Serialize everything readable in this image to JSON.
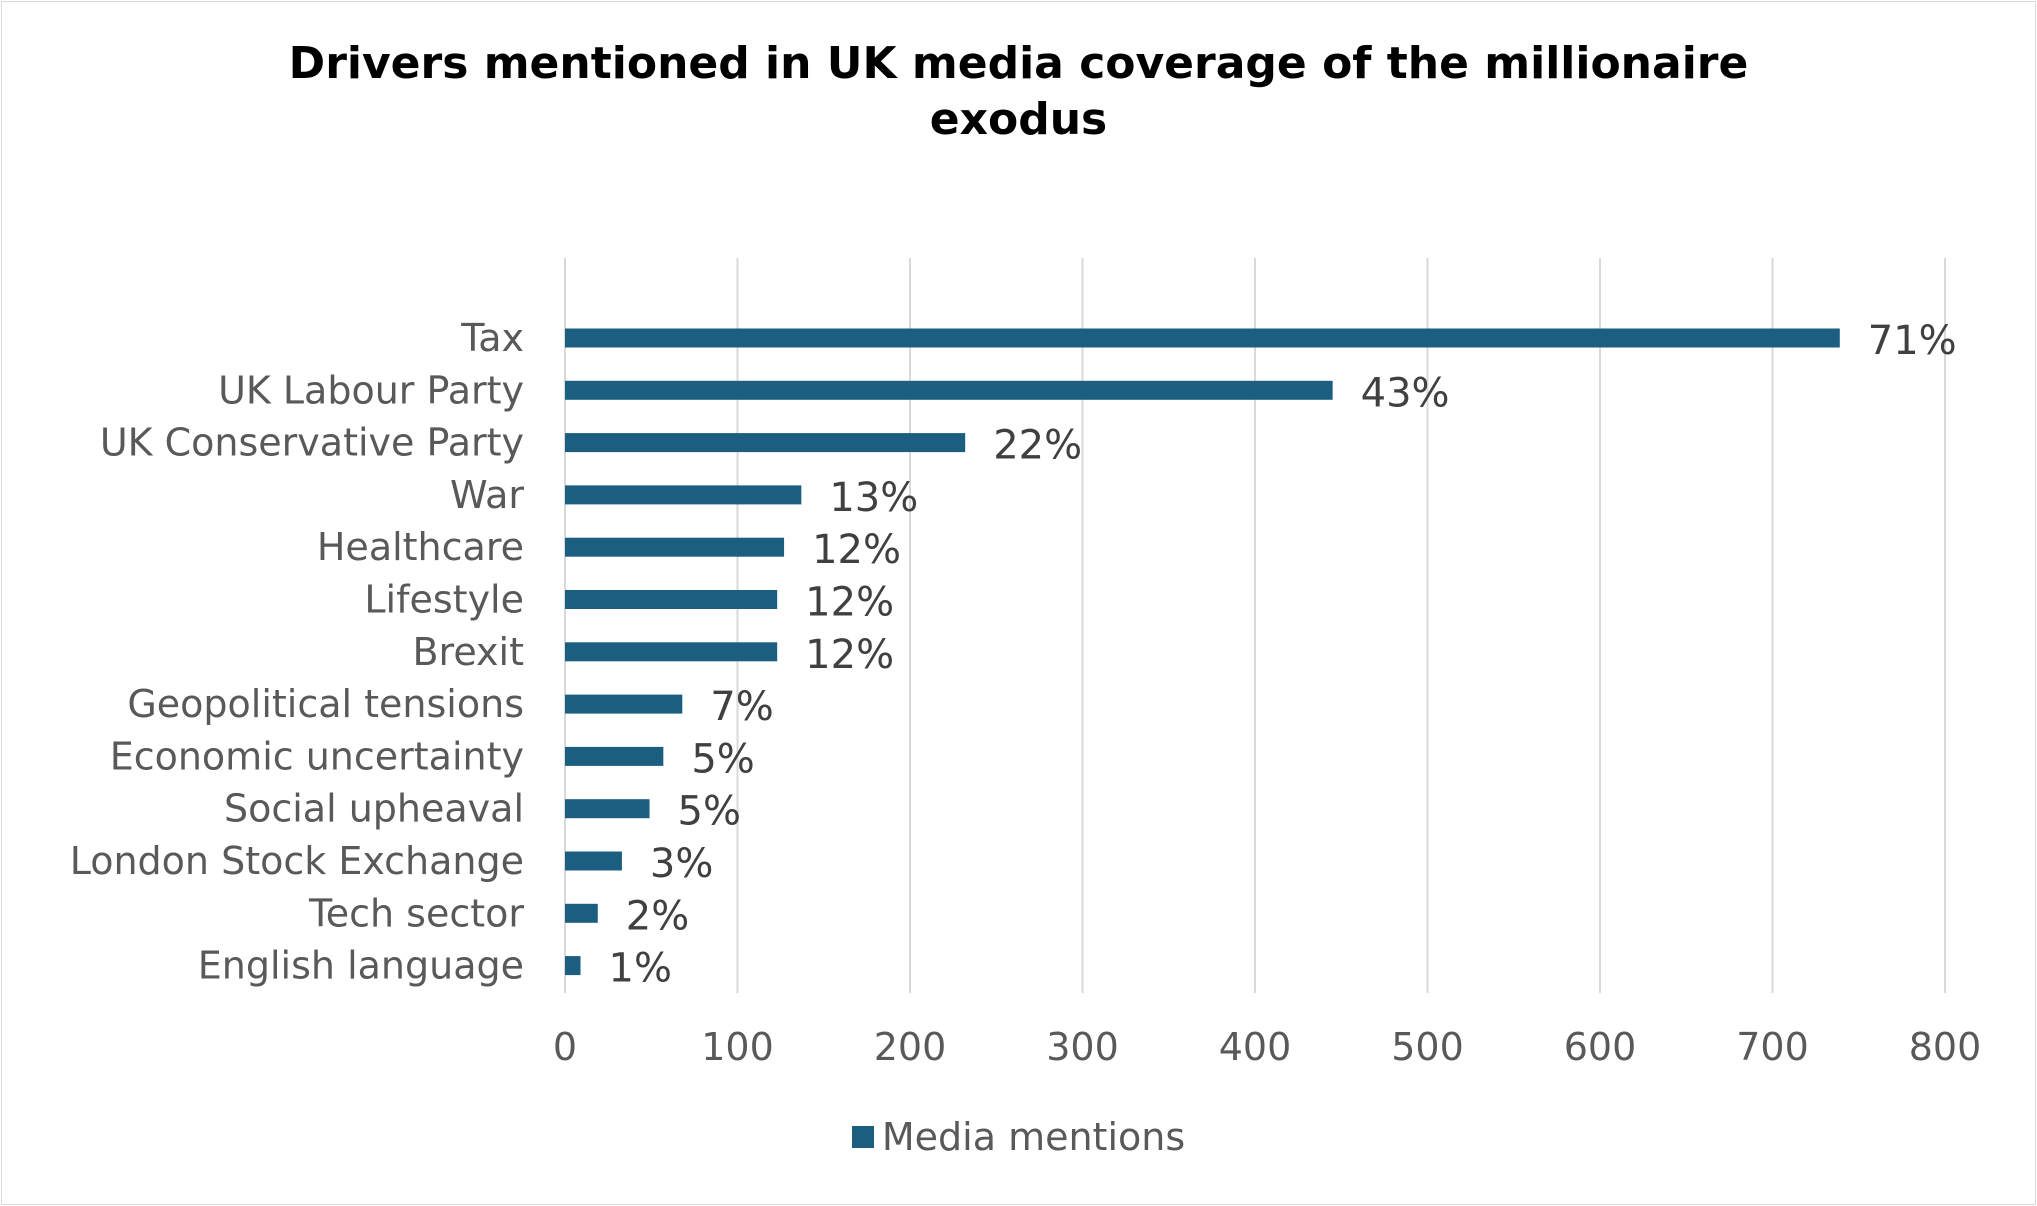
{
  "chart_data": {
    "type": "bar",
    "orientation": "horizontal",
    "title_lines": [
      "Drivers mentioned in UK media coverage of the millionaire",
      "exodus"
    ],
    "categories": [
      "Tax",
      "UK Labour Party",
      "UK Conservative Party",
      "War",
      "Healthcare",
      "Lifestyle",
      "Brexit",
      "Geopolitical tensions",
      "Economic uncertainty",
      "Social upheaval",
      "London Stock Exchange",
      "Tech sector",
      "English language"
    ],
    "series": [
      {
        "name": "Media mentions",
        "color": "#1b5e80",
        "values": [
          739,
          445,
          232,
          137,
          127,
          123,
          123,
          68,
          57,
          49,
          33,
          19,
          9
        ],
        "data_labels": [
          "71%",
          "43%",
          "22%",
          "13%",
          "12%",
          "12%",
          "12%",
          "7%",
          "5%",
          "5%",
          "3%",
          "2%",
          "1%"
        ]
      }
    ],
    "xlim": [
      0,
      800
    ],
    "x_ticks": [
      0,
      100,
      200,
      300,
      400,
      500,
      600,
      700,
      800
    ],
    "xlabel": "",
    "ylabel": "",
    "grid": true,
    "legend_position": "bottom",
    "gridline_color": "#d9d9d9"
  }
}
